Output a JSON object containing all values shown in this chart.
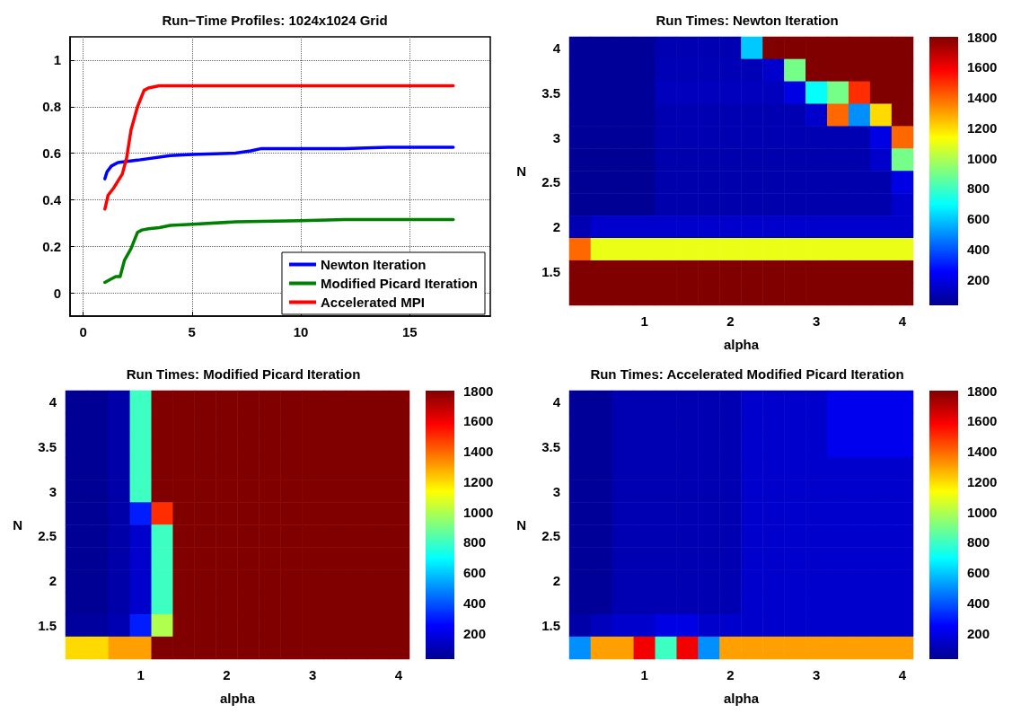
{
  "chart_data": [
    {
      "type": "line",
      "title": "Run−Time Profiles: 1024x1024 Grid",
      "xlim": [
        -0.6,
        18.7
      ],
      "xticks": [
        0,
        5,
        10,
        15
      ],
      "ylim": [
        -0.1,
        1.1
      ],
      "yticks": [
        0,
        0.2,
        0.4,
        0.6,
        0.8,
        1
      ],
      "grid": true,
      "legend": "bottom right",
      "line_style": "solid",
      "series": [
        {
          "name": "Newton Iteration",
          "color": "#0000ff",
          "x": [
            1,
            1.1,
            1.3,
            1.6,
            2.5,
            4,
            5,
            7,
            7.7,
            8.2,
            12,
            14,
            17
          ],
          "values": [
            0.49,
            0.52,
            0.545,
            0.56,
            0.57,
            0.59,
            0.595,
            0.6,
            0.61,
            0.62,
            0.62,
            0.625,
            0.625
          ]
        },
        {
          "name": "Modified Picard Iteration",
          "color": "#008000",
          "x": [
            1,
            1.3,
            1.5,
            1.7,
            1.9,
            2.2,
            2.5,
            2.7,
            3,
            3.5,
            4,
            5,
            7,
            10,
            12,
            17
          ],
          "values": [
            0.045,
            0.06,
            0.07,
            0.07,
            0.14,
            0.19,
            0.26,
            0.27,
            0.275,
            0.28,
            0.29,
            0.295,
            0.305,
            0.31,
            0.315,
            0.315
          ]
        },
        {
          "name": "Accelerated MPI",
          "color": "#ff0000",
          "x": [
            1,
            1.15,
            1.4,
            1.6,
            1.8,
            2,
            2.2,
            2.5,
            2.8,
            3,
            3.5,
            17
          ],
          "values": [
            0.36,
            0.42,
            0.45,
            0.48,
            0.51,
            0.58,
            0.7,
            0.8,
            0.87,
            0.88,
            0.89,
            0.89
          ]
        }
      ]
    },
    {
      "type": "heatmap",
      "title": "Run Times: Newton Iteration",
      "xlabel": "alpha",
      "ylabel": "N",
      "clim": [
        30,
        1800
      ],
      "cticks": [
        200,
        400,
        600,
        800,
        1000,
        1200,
        1400,
        1600,
        1800
      ],
      "categories": [
        null,
        null,
        null,
        "1",
        null,
        null,
        null,
        "2",
        null,
        null,
        null,
        "3",
        null,
        null,
        null,
        "4"
      ],
      "y_categories": [
        "4",
        null,
        "3.5",
        null,
        "3",
        null,
        "2.5",
        null,
        "2",
        null,
        "1.5",
        null
      ],
      "cells": [
        [
          50,
          50,
          50,
          50,
          100,
          100,
          100,
          100,
          600,
          1800,
          1800,
          1800,
          1800,
          1800,
          1800,
          1800
        ],
        [
          50,
          50,
          50,
          50,
          110,
          110,
          110,
          110,
          110,
          150,
          900,
          1800,
          1800,
          1800,
          1800,
          1800
        ],
        [
          50,
          50,
          50,
          50,
          120,
          120,
          120,
          120,
          120,
          120,
          200,
          700,
          900,
          1500,
          1800,
          1800
        ],
        [
          50,
          50,
          50,
          50,
          100,
          100,
          100,
          100,
          100,
          100,
          100,
          150,
          1400,
          500,
          1200,
          1800
        ],
        [
          50,
          50,
          50,
          50,
          100,
          100,
          100,
          100,
          100,
          100,
          100,
          100,
          100,
          100,
          200,
          1400
        ],
        [
          40,
          40,
          40,
          40,
          90,
          90,
          90,
          90,
          90,
          90,
          90,
          90,
          90,
          90,
          150,
          900
        ],
        [
          40,
          40,
          40,
          40,
          90,
          90,
          90,
          90,
          90,
          90,
          90,
          90,
          90,
          90,
          90,
          200
        ],
        [
          40,
          40,
          40,
          40,
          90,
          90,
          90,
          90,
          90,
          90,
          90,
          90,
          90,
          90,
          90,
          150
        ],
        [
          100,
          150,
          150,
          150,
          150,
          150,
          150,
          150,
          150,
          150,
          150,
          150,
          150,
          150,
          150,
          150
        ],
        [
          1400,
          1100,
          1100,
          1100,
          1100,
          1100,
          1100,
          1100,
          1100,
          1100,
          1100,
          1100,
          1100,
          1100,
          1100,
          1100
        ],
        [
          1800,
          1800,
          1800,
          1800,
          1800,
          1800,
          1800,
          1800,
          1800,
          1800,
          1800,
          1800,
          1800,
          1800,
          1800,
          1800
        ],
        [
          1800,
          1800,
          1800,
          1800,
          1800,
          1800,
          1800,
          1800,
          1800,
          1800,
          1800,
          1800,
          1800,
          1800,
          1800,
          1800
        ]
      ]
    },
    {
      "type": "heatmap",
      "title": "Run Times: Modified Picard Iteration",
      "xlabel": "alpha",
      "ylabel": "N",
      "clim": [
        30,
        1800
      ],
      "cticks": [
        200,
        400,
        600,
        800,
        1000,
        1200,
        1400,
        1600,
        1800
      ],
      "categories": [
        null,
        null,
        null,
        "1",
        null,
        null,
        null,
        "2",
        null,
        null,
        null,
        "3",
        null,
        null,
        null,
        "4"
      ],
      "y_categories": [
        "4",
        null,
        "3.5",
        null,
        "3",
        null,
        "2.5",
        null,
        "2",
        null,
        "1.5",
        null
      ],
      "cells": [
        [
          40,
          40,
          80,
          800,
          1800,
          1800,
          1800,
          1800,
          1800,
          1800,
          1800,
          1800,
          1800,
          1800,
          1800,
          1800
        ],
        [
          40,
          40,
          80,
          800,
          1800,
          1800,
          1800,
          1800,
          1800,
          1800,
          1800,
          1800,
          1800,
          1800,
          1800,
          1800
        ],
        [
          40,
          40,
          80,
          800,
          1800,
          1800,
          1800,
          1800,
          1800,
          1800,
          1800,
          1800,
          1800,
          1800,
          1800,
          1800
        ],
        [
          40,
          40,
          80,
          800,
          1800,
          1800,
          1800,
          1800,
          1800,
          1800,
          1800,
          1800,
          1800,
          1800,
          1800,
          1800
        ],
        [
          40,
          40,
          80,
          800,
          1800,
          1800,
          1800,
          1800,
          1800,
          1800,
          1800,
          1800,
          1800,
          1800,
          1800,
          1800
        ],
        [
          40,
          40,
          80,
          300,
          1500,
          1800,
          1800,
          1800,
          1800,
          1800,
          1800,
          1800,
          1800,
          1800,
          1800,
          1800
        ],
        [
          40,
          40,
          80,
          150,
          800,
          1800,
          1800,
          1800,
          1800,
          1800,
          1800,
          1800,
          1800,
          1800,
          1800,
          1800
        ],
        [
          40,
          40,
          80,
          150,
          800,
          1800,
          1800,
          1800,
          1800,
          1800,
          1800,
          1800,
          1800,
          1800,
          1800,
          1800
        ],
        [
          40,
          40,
          80,
          150,
          800,
          1800,
          1800,
          1800,
          1800,
          1800,
          1800,
          1800,
          1800,
          1800,
          1800,
          1800
        ],
        [
          40,
          40,
          80,
          150,
          800,
          1800,
          1800,
          1800,
          1800,
          1800,
          1800,
          1800,
          1800,
          1800,
          1800,
          1800
        ],
        [
          60,
          60,
          100,
          300,
          1000,
          1800,
          1800,
          1800,
          1800,
          1800,
          1800,
          1800,
          1800,
          1800,
          1800,
          1800
        ],
        [
          1200,
          1200,
          1300,
          1300,
          1800,
          1800,
          1800,
          1800,
          1800,
          1800,
          1800,
          1800,
          1800,
          1800,
          1800,
          1800
        ]
      ]
    },
    {
      "type": "heatmap",
      "title": "Run Times: Accelerated Modified Picard Iteration",
      "xlabel": "alpha",
      "ylabel": "N",
      "clim": [
        30,
        1800
      ],
      "cticks": [
        200,
        400,
        600,
        800,
        1000,
        1200,
        1400,
        1600,
        1800
      ],
      "categories": [
        null,
        null,
        null,
        "1",
        null,
        null,
        null,
        "2",
        null,
        null,
        null,
        "3",
        null,
        null,
        null,
        "4"
      ],
      "y_categories": [
        "4",
        null,
        "3.5",
        null,
        "3",
        null,
        "2.5",
        null,
        "2",
        null,
        "1.5",
        null
      ],
      "cells": [
        [
          50,
          50,
          100,
          100,
          100,
          100,
          100,
          100,
          150,
          150,
          150,
          150,
          220,
          220,
          220,
          220
        ],
        [
          50,
          50,
          100,
          100,
          100,
          100,
          100,
          100,
          150,
          150,
          150,
          150,
          220,
          220,
          220,
          220
        ],
        [
          50,
          50,
          100,
          100,
          100,
          100,
          100,
          100,
          150,
          150,
          150,
          150,
          220,
          220,
          220,
          220
        ],
        [
          50,
          50,
          100,
          100,
          100,
          100,
          100,
          100,
          150,
          150,
          150,
          150,
          150,
          150,
          150,
          150
        ],
        [
          50,
          50,
          100,
          100,
          100,
          100,
          100,
          100,
          150,
          150,
          150,
          150,
          150,
          150,
          150,
          150
        ],
        [
          50,
          50,
          100,
          100,
          100,
          100,
          100,
          100,
          150,
          150,
          150,
          150,
          150,
          150,
          150,
          150
        ],
        [
          50,
          50,
          100,
          100,
          100,
          100,
          100,
          100,
          150,
          150,
          150,
          150,
          150,
          150,
          150,
          150
        ],
        [
          50,
          50,
          100,
          100,
          100,
          100,
          100,
          100,
          150,
          150,
          150,
          150,
          150,
          150,
          150,
          150
        ],
        [
          50,
          50,
          100,
          100,
          100,
          100,
          100,
          100,
          150,
          150,
          150,
          150,
          150,
          150,
          150,
          150
        ],
        [
          50,
          50,
          100,
          100,
          100,
          100,
          100,
          100,
          150,
          150,
          150,
          150,
          150,
          150,
          150,
          150
        ],
        [
          80,
          120,
          150,
          150,
          200,
          200,
          150,
          150,
          150,
          150,
          150,
          150,
          150,
          150,
          150,
          150
        ],
        [
          500,
          1300,
          1300,
          1600,
          800,
          1600,
          500,
          1300,
          1300,
          1300,
          1300,
          1300,
          1300,
          1300,
          1300,
          1300
        ]
      ]
    }
  ]
}
